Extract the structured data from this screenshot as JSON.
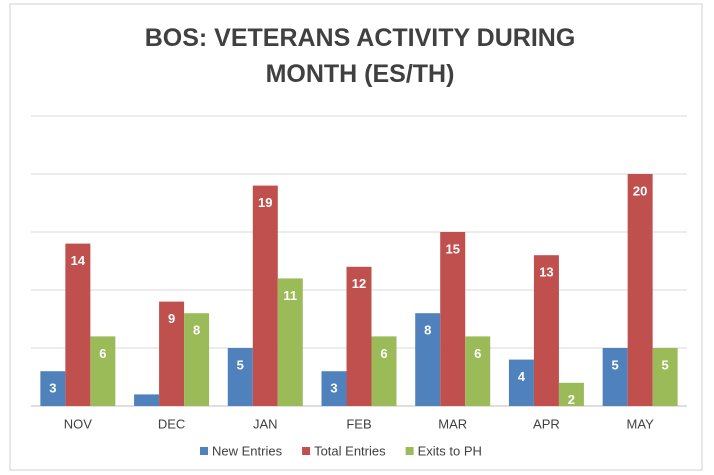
{
  "chart_data": {
    "type": "bar",
    "title": "BOS: VETERANS ACTIVITY DURING MONTH (ES/TH)",
    "categories": [
      "NOV",
      "DEC",
      "JAN",
      "FEB",
      "MAR",
      "APR",
      "MAY"
    ],
    "series": [
      {
        "name": "New Entries",
        "color": "#4f81bd",
        "values": [
          3,
          1,
          5,
          3,
          8,
          4,
          5
        ],
        "value_labels": [
          "3",
          null,
          "5",
          "3",
          "8",
          "4",
          "5"
        ]
      },
      {
        "name": "Total Entries",
        "color": "#c0504d",
        "values": [
          14,
          9,
          19,
          12,
          15,
          13,
          20
        ]
      },
      {
        "name": "Exits to PH",
        "color": "#9bbb59",
        "values": [
          6,
          8,
          11,
          6,
          6,
          2,
          5
        ]
      }
    ],
    "ylim": [
      0,
      25
    ],
    "yticks": [
      0,
      5,
      10,
      15,
      20,
      25
    ],
    "grid": true,
    "legend": "bottom"
  }
}
